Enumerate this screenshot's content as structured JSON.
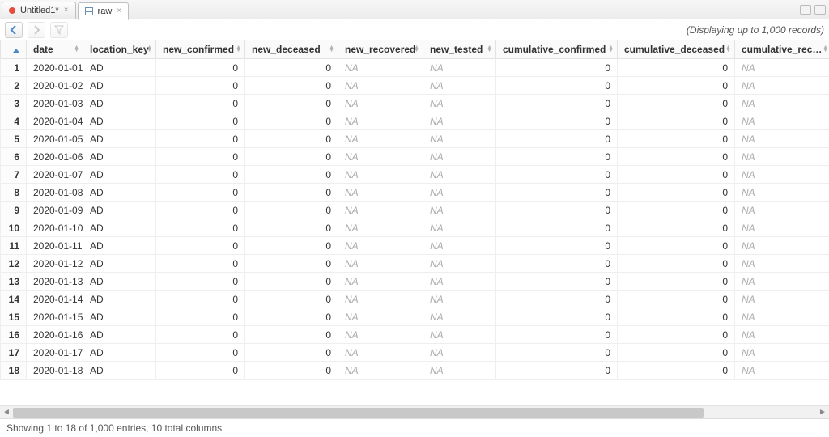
{
  "tabs": [
    {
      "label": "Untitled1*",
      "active": false,
      "icon": "rdot"
    },
    {
      "label": "raw",
      "active": true,
      "icon": "grid"
    }
  ],
  "toolbar_hint": "(Displaying up to 1,000 records)",
  "columns": [
    {
      "key": "date",
      "label": "date",
      "type": "text"
    },
    {
      "key": "location_key",
      "label": "location_key",
      "type": "text"
    },
    {
      "key": "new_confirmed",
      "label": "new_confirmed",
      "type": "num"
    },
    {
      "key": "new_deceased",
      "label": "new_deceased",
      "type": "num"
    },
    {
      "key": "new_recovered",
      "label": "new_recovered",
      "type": "na"
    },
    {
      "key": "new_tested",
      "label": "new_tested",
      "type": "na"
    },
    {
      "key": "cumulative_confirmed",
      "label": "cumulative_confirmed",
      "type": "num"
    },
    {
      "key": "cumulative_deceased",
      "label": "cumulative_deceased",
      "type": "num"
    },
    {
      "key": "cumulative_recovered",
      "label": "cumulative_recovered",
      "type": "na"
    }
  ],
  "rows": [
    {
      "n": 1,
      "date": "2020-01-01",
      "location_key": "AD",
      "new_confirmed": 0,
      "new_deceased": 0,
      "new_recovered": "NA",
      "new_tested": "NA",
      "cumulative_confirmed": 0,
      "cumulative_deceased": 0,
      "cumulative_recovered": "NA"
    },
    {
      "n": 2,
      "date": "2020-01-02",
      "location_key": "AD",
      "new_confirmed": 0,
      "new_deceased": 0,
      "new_recovered": "NA",
      "new_tested": "NA",
      "cumulative_confirmed": 0,
      "cumulative_deceased": 0,
      "cumulative_recovered": "NA"
    },
    {
      "n": 3,
      "date": "2020-01-03",
      "location_key": "AD",
      "new_confirmed": 0,
      "new_deceased": 0,
      "new_recovered": "NA",
      "new_tested": "NA",
      "cumulative_confirmed": 0,
      "cumulative_deceased": 0,
      "cumulative_recovered": "NA"
    },
    {
      "n": 4,
      "date": "2020-01-04",
      "location_key": "AD",
      "new_confirmed": 0,
      "new_deceased": 0,
      "new_recovered": "NA",
      "new_tested": "NA",
      "cumulative_confirmed": 0,
      "cumulative_deceased": 0,
      "cumulative_recovered": "NA"
    },
    {
      "n": 5,
      "date": "2020-01-05",
      "location_key": "AD",
      "new_confirmed": 0,
      "new_deceased": 0,
      "new_recovered": "NA",
      "new_tested": "NA",
      "cumulative_confirmed": 0,
      "cumulative_deceased": 0,
      "cumulative_recovered": "NA"
    },
    {
      "n": 6,
      "date": "2020-01-06",
      "location_key": "AD",
      "new_confirmed": 0,
      "new_deceased": 0,
      "new_recovered": "NA",
      "new_tested": "NA",
      "cumulative_confirmed": 0,
      "cumulative_deceased": 0,
      "cumulative_recovered": "NA"
    },
    {
      "n": 7,
      "date": "2020-01-07",
      "location_key": "AD",
      "new_confirmed": 0,
      "new_deceased": 0,
      "new_recovered": "NA",
      "new_tested": "NA",
      "cumulative_confirmed": 0,
      "cumulative_deceased": 0,
      "cumulative_recovered": "NA"
    },
    {
      "n": 8,
      "date": "2020-01-08",
      "location_key": "AD",
      "new_confirmed": 0,
      "new_deceased": 0,
      "new_recovered": "NA",
      "new_tested": "NA",
      "cumulative_confirmed": 0,
      "cumulative_deceased": 0,
      "cumulative_recovered": "NA"
    },
    {
      "n": 9,
      "date": "2020-01-09",
      "location_key": "AD",
      "new_confirmed": 0,
      "new_deceased": 0,
      "new_recovered": "NA",
      "new_tested": "NA",
      "cumulative_confirmed": 0,
      "cumulative_deceased": 0,
      "cumulative_recovered": "NA"
    },
    {
      "n": 10,
      "date": "2020-01-10",
      "location_key": "AD",
      "new_confirmed": 0,
      "new_deceased": 0,
      "new_recovered": "NA",
      "new_tested": "NA",
      "cumulative_confirmed": 0,
      "cumulative_deceased": 0,
      "cumulative_recovered": "NA"
    },
    {
      "n": 11,
      "date": "2020-01-11",
      "location_key": "AD",
      "new_confirmed": 0,
      "new_deceased": 0,
      "new_recovered": "NA",
      "new_tested": "NA",
      "cumulative_confirmed": 0,
      "cumulative_deceased": 0,
      "cumulative_recovered": "NA"
    },
    {
      "n": 12,
      "date": "2020-01-12",
      "location_key": "AD",
      "new_confirmed": 0,
      "new_deceased": 0,
      "new_recovered": "NA",
      "new_tested": "NA",
      "cumulative_confirmed": 0,
      "cumulative_deceased": 0,
      "cumulative_recovered": "NA"
    },
    {
      "n": 13,
      "date": "2020-01-13",
      "location_key": "AD",
      "new_confirmed": 0,
      "new_deceased": 0,
      "new_recovered": "NA",
      "new_tested": "NA",
      "cumulative_confirmed": 0,
      "cumulative_deceased": 0,
      "cumulative_recovered": "NA"
    },
    {
      "n": 14,
      "date": "2020-01-14",
      "location_key": "AD",
      "new_confirmed": 0,
      "new_deceased": 0,
      "new_recovered": "NA",
      "new_tested": "NA",
      "cumulative_confirmed": 0,
      "cumulative_deceased": 0,
      "cumulative_recovered": "NA"
    },
    {
      "n": 15,
      "date": "2020-01-15",
      "location_key": "AD",
      "new_confirmed": 0,
      "new_deceased": 0,
      "new_recovered": "NA",
      "new_tested": "NA",
      "cumulative_confirmed": 0,
      "cumulative_deceased": 0,
      "cumulative_recovered": "NA"
    },
    {
      "n": 16,
      "date": "2020-01-16",
      "location_key": "AD",
      "new_confirmed": 0,
      "new_deceased": 0,
      "new_recovered": "NA",
      "new_tested": "NA",
      "cumulative_confirmed": 0,
      "cumulative_deceased": 0,
      "cumulative_recovered": "NA"
    },
    {
      "n": 17,
      "date": "2020-01-17",
      "location_key": "AD",
      "new_confirmed": 0,
      "new_deceased": 0,
      "new_recovered": "NA",
      "new_tested": "NA",
      "cumulative_confirmed": 0,
      "cumulative_deceased": 0,
      "cumulative_recovered": "NA"
    },
    {
      "n": 18,
      "date": "2020-01-18",
      "location_key": "AD",
      "new_confirmed": 0,
      "new_deceased": 0,
      "new_recovered": "NA",
      "new_tested": "NA",
      "cumulative_confirmed": 0,
      "cumulative_deceased": 0,
      "cumulative_recovered": "NA"
    }
  ],
  "footer": "Showing 1 to 18 of 1,000 entries, 10 total columns",
  "colors": {
    "sort_arrow": "#4a8ac9",
    "na_text": "#aaaaaa",
    "row_border": "#eeeeee",
    "header_bg": "#fafafa"
  }
}
